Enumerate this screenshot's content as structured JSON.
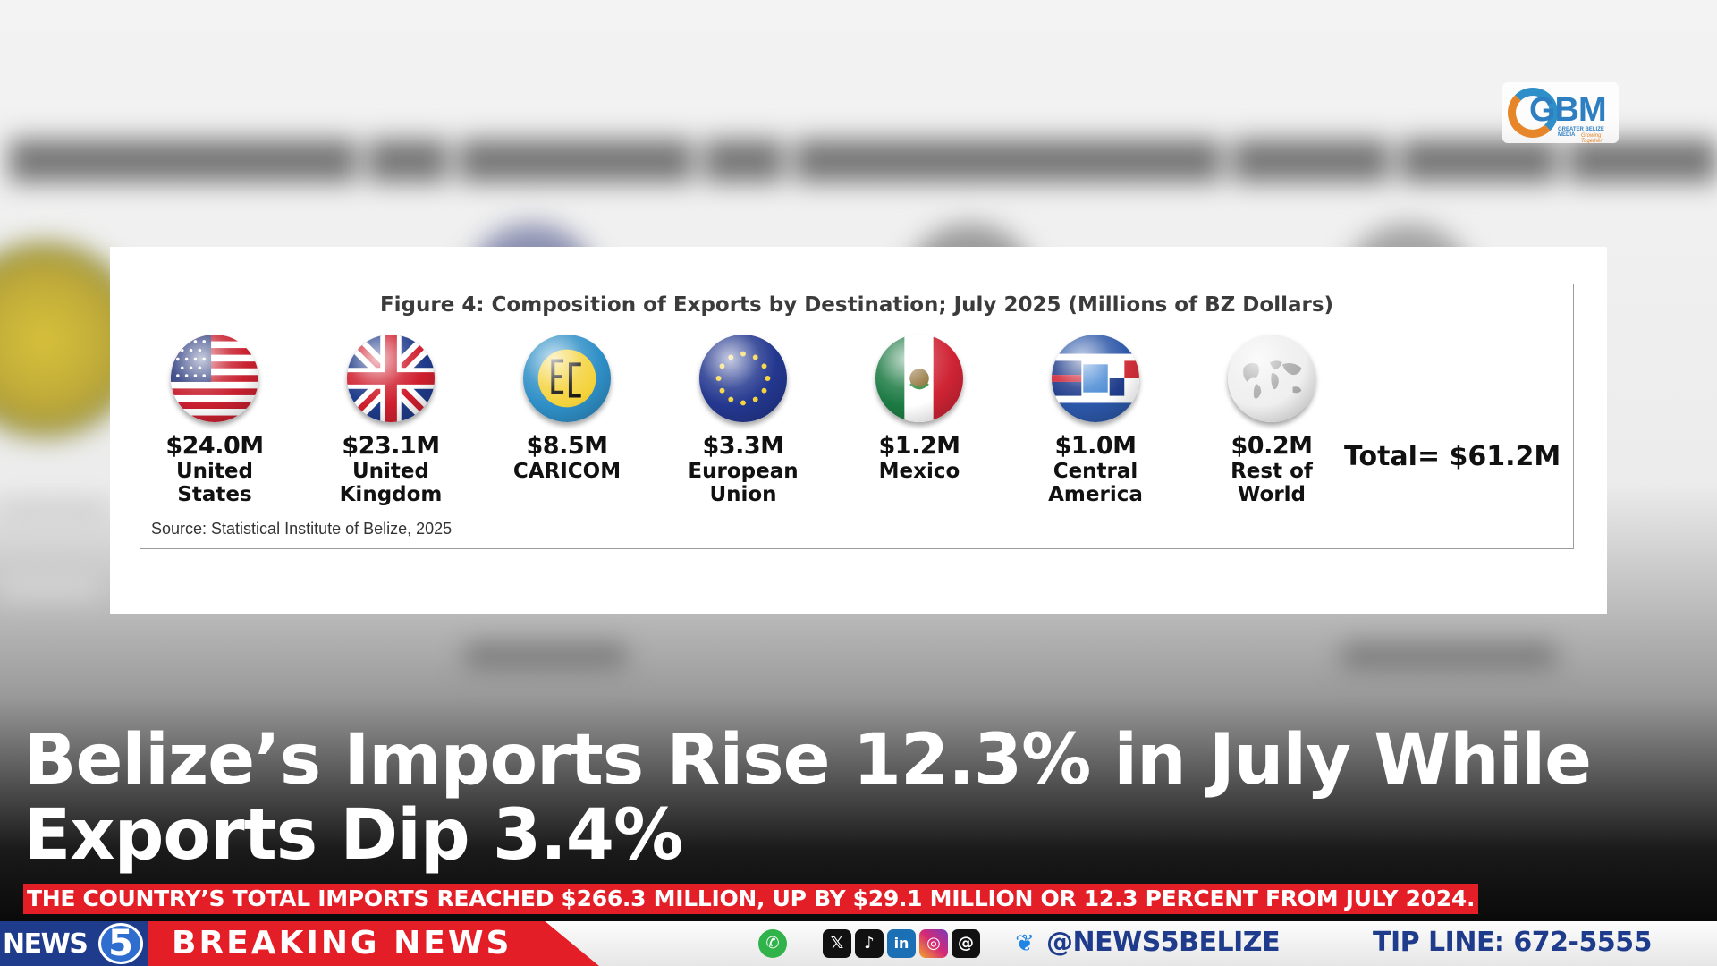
{
  "figure": {
    "title": "Figure 4: Composition of Exports by Destination; July 2025 (Millions of BZ Dollars)",
    "total_label": "Total= $61.2M",
    "source": "Source: Statistical Institute of Belize, 2025"
  },
  "chart_data": {
    "type": "table",
    "title": "Figure 4: Composition of Exports by Destination; July 2025 (Millions of BZ Dollars)",
    "categories": [
      "United States",
      "United Kingdom",
      "CARICOM",
      "European Union",
      "Mexico",
      "Central America",
      "Rest of World"
    ],
    "values": [
      24.0,
      23.1,
      8.5,
      3.3,
      1.2,
      1.0,
      0.2
    ],
    "unit": "Millions of BZ Dollars",
    "total": 61.2
  },
  "destinations": [
    {
      "value": "$24.0M",
      "label": "United\nStates",
      "flag": "us-flag-icon"
    },
    {
      "value": "$23.1M",
      "label": "United\nKingdom",
      "flag": "uk-flag-icon"
    },
    {
      "value": "$8.5M",
      "label": "CARICOM",
      "flag": "caricom-flag-icon"
    },
    {
      "value": "$3.3M",
      "label": "European\nUnion",
      "flag": "eu-flag-icon"
    },
    {
      "value": "$1.2M",
      "label": "Mexico",
      "flag": "mexico-flag-icon"
    },
    {
      "value": "$1.0M",
      "label": "Central\nAmerica",
      "flag": "central-america-flag-icon"
    },
    {
      "value": "$0.2M",
      "label": "Rest of\nWorld",
      "flag": "world-globe-icon"
    }
  ],
  "logo": {
    "text": "GBM",
    "subtitle": "GREATER BELIZE MEDIA",
    "slogan": "Growing Together"
  },
  "headline": "Belize’s Imports Rise 12.3% in July While Exports Dip 3.4%",
  "subheadline": "THE COUNTRY’S TOTAL IMPORTS REACHED $266.3 MILLION, UP BY $29.1 MILLION OR 12.3 PERCENT FROM JULY 2024.",
  "ticker": {
    "brand_text": "NEWS",
    "brand_number": "5",
    "breaking": "BREAKING NEWS",
    "handle": "@NEWS5BELIZE",
    "tipline": "TIP LINE: 672-5555"
  },
  "colors": {
    "accent_red": "#e41e26",
    "brand_blue": "#1f3c8c"
  }
}
